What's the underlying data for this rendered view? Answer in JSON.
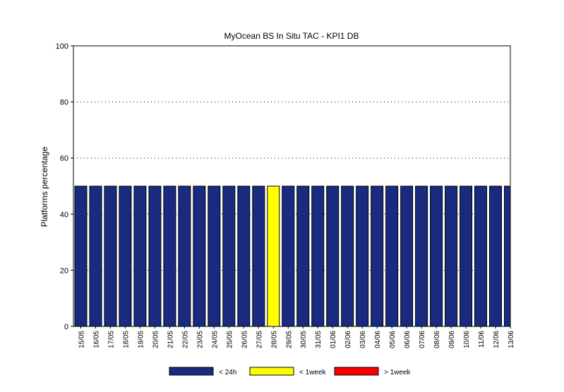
{
  "chart_data": {
    "type": "bar",
    "title": "MyOcean  BS In Situ TAC - KPI1  DB",
    "xlabel": "",
    "ylabel": "Platforms percentage",
    "ylim": [
      0,
      100
    ],
    "yticks": [
      0,
      20,
      40,
      60,
      80,
      100
    ],
    "grid": "horizontal dotted",
    "categories": [
      "15/05",
      "16/05",
      "17/05",
      "18/05",
      "19/05",
      "20/05",
      "21/05",
      "22/05",
      "23/05",
      "24/05",
      "25/05",
      "26/05",
      "27/05",
      "28/05",
      "29/05",
      "30/05",
      "31/05",
      "01/06",
      "02/06",
      "03/06",
      "04/06",
      "05/06",
      "06/06",
      "07/06",
      "08/06",
      "09/06",
      "10/06",
      "11/06",
      "12/06",
      "13/06"
    ],
    "series": [
      {
        "name": "< 24h",
        "color": "#1a2a80",
        "values": [
          50,
          50,
          50,
          50,
          50,
          50,
          50,
          50,
          50,
          50,
          50,
          50,
          50,
          0,
          50,
          50,
          50,
          50,
          50,
          50,
          50,
          50,
          50,
          50,
          50,
          50,
          50,
          50,
          50,
          50
        ]
      },
      {
        "name": "< 1week",
        "color": "#ffff00",
        "values": [
          0,
          0,
          0,
          0,
          0,
          0,
          0,
          0,
          0,
          0,
          0,
          0,
          0,
          50,
          0,
          0,
          0,
          0,
          0,
          0,
          0,
          0,
          0,
          0,
          0,
          0,
          0,
          0,
          0,
          0
        ]
      },
      {
        "name": "> 1week",
        "color": "#ff0000",
        "values": [
          0,
          0,
          0,
          0,
          0,
          0,
          0,
          0,
          0,
          0,
          0,
          0,
          0,
          0,
          0,
          0,
          0,
          0,
          0,
          0,
          0,
          0,
          0,
          0,
          0,
          0,
          0,
          0,
          0,
          0
        ]
      }
    ],
    "legend_position": "bottom-center"
  }
}
